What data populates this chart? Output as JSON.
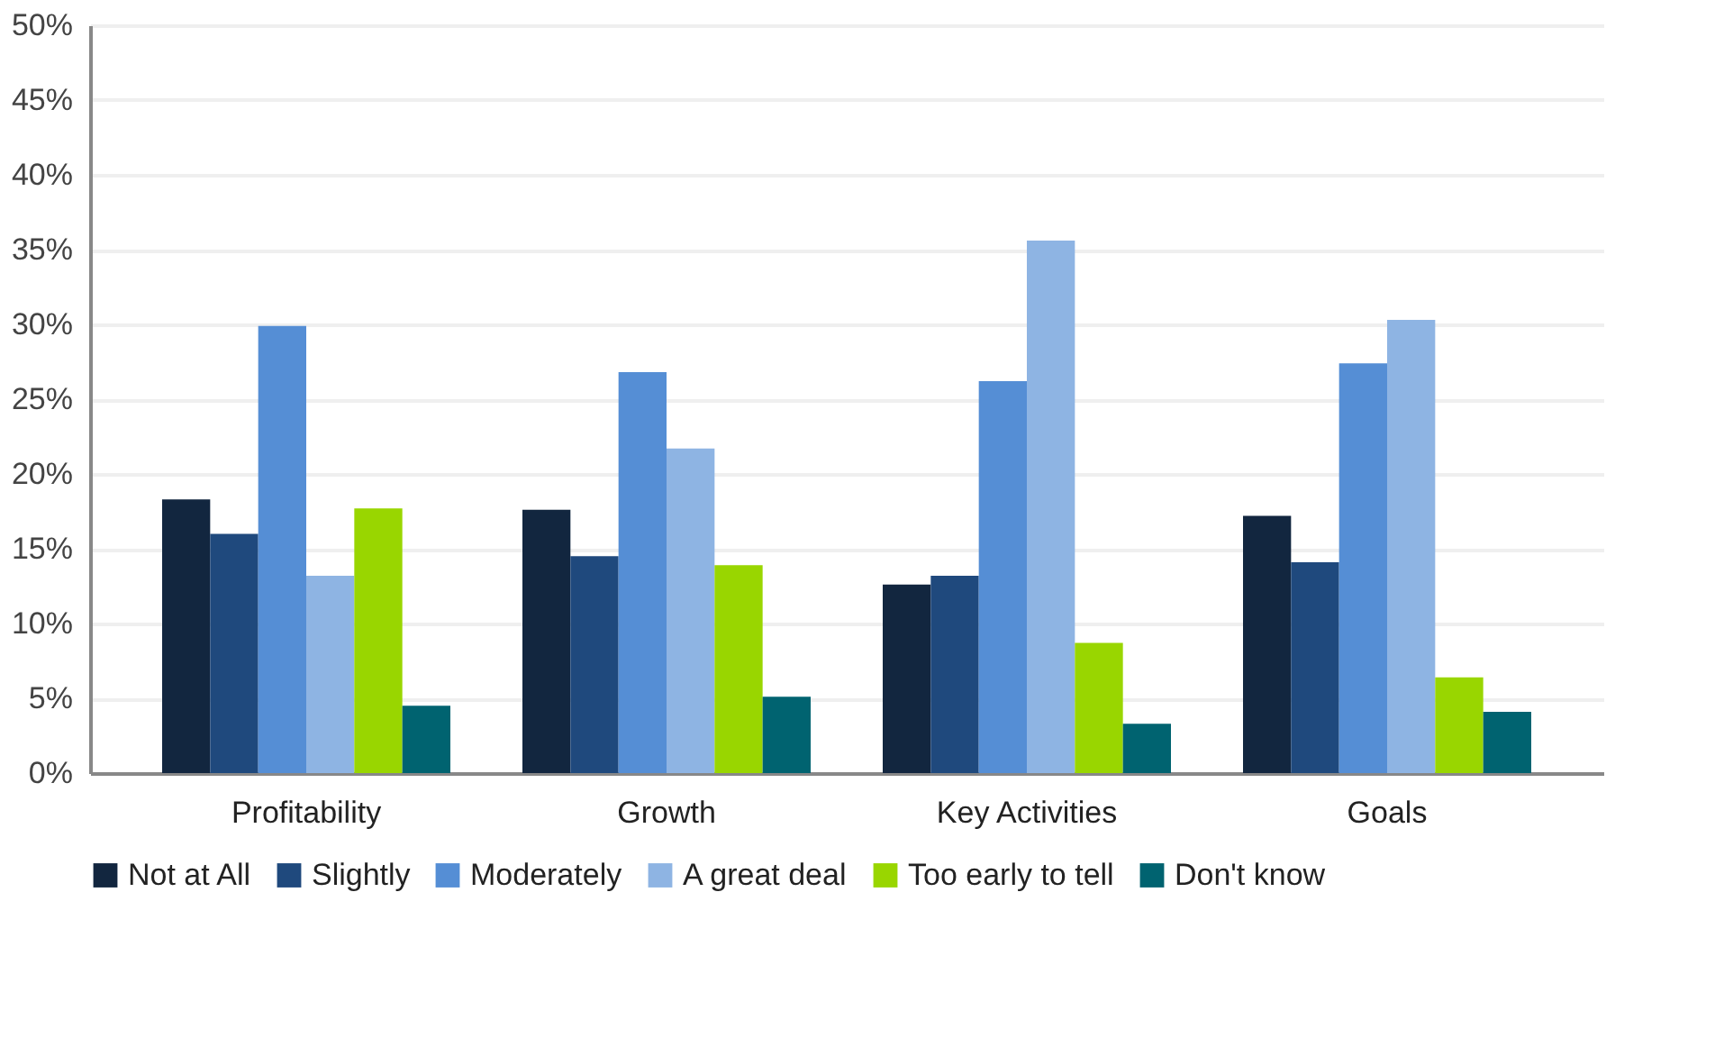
{
  "chart_data": {
    "type": "bar",
    "categories": [
      "Profitability",
      "Growth",
      "Key Activities",
      "Goals"
    ],
    "series": [
      {
        "name": "Not at All",
        "color": "#12263f",
        "values": [
          18.3,
          17.6,
          12.6,
          17.2
        ]
      },
      {
        "name": "Slightly",
        "color": "#1f497d",
        "values": [
          16.0,
          14.5,
          13.2,
          14.1
        ]
      },
      {
        "name": "Moderately",
        "color": "#558ed5",
        "values": [
          29.9,
          26.8,
          26.2,
          27.4
        ]
      },
      {
        "name": "A great deal",
        "color": "#8eb4e3",
        "values": [
          13.2,
          21.7,
          35.6,
          30.3
        ]
      },
      {
        "name": "Too early to tell",
        "color": "#99d600",
        "values": [
          17.7,
          13.9,
          8.7,
          6.4
        ]
      },
      {
        "name": "Don't know",
        "color": "#006370",
        "values": [
          4.5,
          5.1,
          3.3,
          4.1
        ]
      }
    ],
    "ylim": [
      0,
      50
    ],
    "yticks": [
      {
        "value": 0,
        "label": "0%"
      },
      {
        "value": 5,
        "label": "5%"
      },
      {
        "value": 10,
        "label": "10%"
      },
      {
        "value": 15,
        "label": "15%"
      },
      {
        "value": 20,
        "label": "20%"
      },
      {
        "value": 25,
        "label": "25%"
      },
      {
        "value": 30,
        "label": "30%"
      },
      {
        "value": 35,
        "label": "35%"
      },
      {
        "value": 40,
        "label": "40%"
      },
      {
        "value": 45,
        "label": "45%"
      },
      {
        "value": 50,
        "label": "50%"
      }
    ],
    "grid": "y",
    "legend": "bottom"
  }
}
